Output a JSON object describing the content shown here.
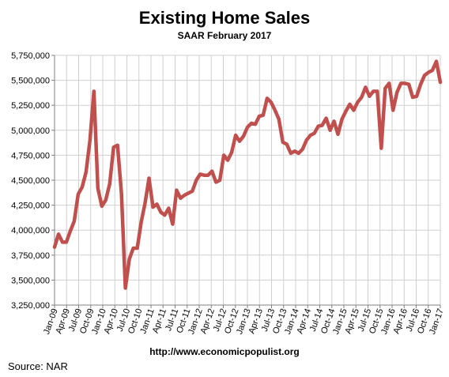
{
  "chart_data": {
    "type": "line",
    "title": "Existing Home Sales",
    "subtitle": "SAAR February 2017",
    "xlabel": "",
    "ylabel": "",
    "ylim": [
      3250000,
      5750000
    ],
    "y_ticks": [
      "3,250,000",
      "3,500,000",
      "3,750,000",
      "4,000,000",
      "4,250,000",
      "4,500,000",
      "4,750,000",
      "5,000,000",
      "5,250,000",
      "5,500,000",
      "5,750,000"
    ],
    "x_ticks": [
      "Jan-09",
      "Apr-09",
      "Jul-09",
      "Oct-09",
      "Jan-10",
      "Apr-10",
      "Jul-10",
      "Oct-10",
      "Jan-11",
      "Apr-11",
      "Jul-11",
      "Oct-11",
      "Jan-12",
      "Apr-12",
      "Jul-12",
      "Oct-12",
      "Jan-13",
      "Apr-13",
      "Jul-13",
      "Oct-13",
      "Jan-14",
      "Apr-14",
      "Jul-14",
      "Oct-14",
      "Jan-15",
      "Apr-15",
      "Jul-15",
      "Oct-15",
      "Jan-16",
      "Apr-16",
      "Jul-16",
      "Oct-16",
      "Jan-17"
    ],
    "grid": true,
    "line_color": "#c0504d",
    "series": [
      {
        "values": [
          3830000,
          3960000,
          3880000,
          3880000,
          3990000,
          4090000,
          4360000,
          4430000,
          4580000,
          4900000,
          5390000,
          4420000,
          4240000,
          4300000,
          4460000,
          4830000,
          4850000,
          4360000,
          3420000,
          3710000,
          3820000,
          3820000,
          4080000,
          4270000,
          4520000,
          4230000,
          4260000,
          4180000,
          4150000,
          4220000,
          4060000,
          4400000,
          4320000,
          4350000,
          4370000,
          4390000,
          4500000,
          4560000,
          4550000,
          4550000,
          4590000,
          4480000,
          4500000,
          4750000,
          4700000,
          4780000,
          4950000,
          4890000,
          4940000,
          5030000,
          5070000,
          5060000,
          5140000,
          5150000,
          5320000,
          5280000,
          5200000,
          5110000,
          4880000,
          4860000,
          4770000,
          4790000,
          4770000,
          4810000,
          4900000,
          4950000,
          4970000,
          5040000,
          5050000,
          5120000,
          5000000,
          5090000,
          4960000,
          5110000,
          5190000,
          5260000,
          5200000,
          5280000,
          5330000,
          5430000,
          5340000,
          5390000,
          5390000,
          4820000,
          5420000,
          5470000,
          5200000,
          5380000,
          5470000,
          5470000,
          5460000,
          5330000,
          5340000,
          5460000,
          5550000,
          5580000,
          5600000,
          5690000,
          5480000
        ]
      }
    ]
  },
  "footer": {
    "url": "http://www.economicpopulist.org",
    "source": "Source:  NAR"
  }
}
